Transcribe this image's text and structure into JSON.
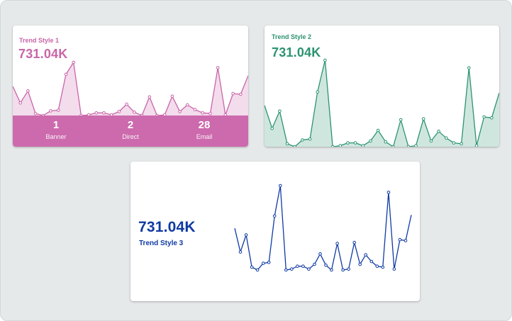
{
  "cards": [
    {
      "title": "Trend Style 1",
      "value": "731.04K"
    },
    {
      "title": "Trend Style 2",
      "value": "731.04K"
    },
    {
      "title": "Trend Style 3",
      "value": "731.04K"
    }
  ],
  "stats": [
    {
      "value": "1",
      "label": "Banner"
    },
    {
      "value": "2",
      "label": "Direct"
    },
    {
      "value": "28",
      "label": "Email"
    }
  ],
  "colors": {
    "style1": "#c965a8",
    "style1_fill": "#f3dcec",
    "style2": "#2c9370",
    "style2_fill": "#cfe6df",
    "style3": "#0f3aa4"
  },
  "chart_data": [
    {
      "type": "area",
      "series": [
        {
          "values": [
            44,
            19,
            37,
            3,
            0,
            7,
            8,
            62,
            80,
            0,
            1,
            4,
            4,
            1,
            6,
            17,
            5,
            0,
            28,
            0,
            1,
            29,
            6,
            16,
            9,
            4,
            3,
            72,
            1,
            33,
            32,
            60
          ]
        }
      ]
    },
    {
      "type": "area",
      "series": [
        {
          "values": [
            43,
            19,
            37,
            3,
            0,
            7,
            8,
            57,
            90,
            0,
            1,
            4,
            4,
            1,
            6,
            17,
            5,
            0,
            28,
            0,
            1,
            29,
            6,
            16,
            9,
            4,
            3,
            82,
            1,
            31,
            30,
            56
          ]
        }
      ]
    },
    {
      "type": "line",
      "series": [
        {
          "values": [
            44,
            19,
            37,
            3,
            0,
            7,
            8,
            57,
            89,
            0,
            1,
            4,
            4,
            1,
            6,
            17,
            5,
            0,
            28,
            0,
            1,
            29,
            6,
            16,
            9,
            4,
            3,
            82,
            1,
            32,
            31,
            58
          ]
        }
      ]
    }
  ]
}
